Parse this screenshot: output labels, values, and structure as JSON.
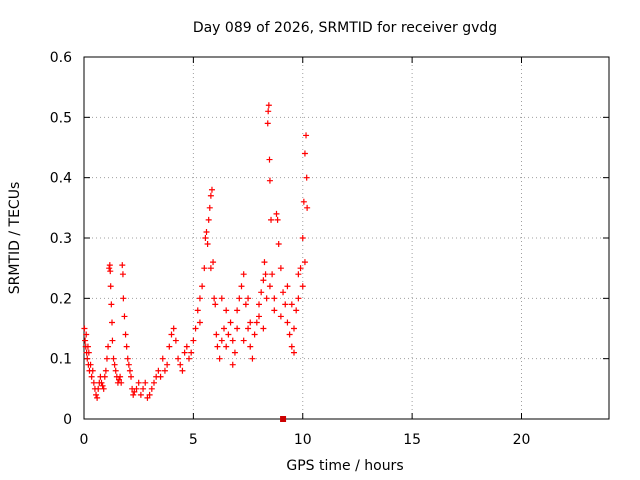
{
  "chart_data": {
    "type": "scatter",
    "title": "Day 089 of 2026, SRMTID for receiver gvdg",
    "xlabel": "GPS time / hours",
    "ylabel": "SRMTID / TECUs",
    "xlim": [
      0,
      24
    ],
    "ylim": [
      0,
      0.6
    ],
    "xticks": [
      0,
      5,
      10,
      15,
      20
    ],
    "xtick_labels": [
      "0",
      "5",
      "10",
      "15",
      "20"
    ],
    "yticks": [
      0,
      0.1,
      0.2,
      0.3,
      0.4,
      0.5,
      0.6
    ],
    "ytick_labels": [
      "0",
      "0.1",
      "0.2",
      "0.3",
      "0.4",
      "0.5",
      "0.6"
    ],
    "grid": true,
    "marker": "+",
    "marker_color": "#ff0000",
    "current_time_marker": {
      "x": 9.1,
      "y": 0,
      "color": "#cc0000"
    },
    "series": [
      {
        "name": "SRMTID",
        "color": "#ff0000",
        "points": [
          [
            0.02,
            0.15
          ],
          [
            0.05,
            0.13
          ],
          [
            0.08,
            0.12
          ],
          [
            0.1,
            0.14
          ],
          [
            0.12,
            0.11
          ],
          [
            0.15,
            0.1
          ],
          [
            0.18,
            0.12
          ],
          [
            0.2,
            0.09
          ],
          [
            0.22,
            0.11
          ],
          [
            0.25,
            0.08
          ],
          [
            0.3,
            0.09
          ],
          [
            0.35,
            0.07
          ],
          [
            0.4,
            0.08
          ],
          [
            0.45,
            0.06
          ],
          [
            0.5,
            0.05
          ],
          [
            0.55,
            0.04
          ],
          [
            0.6,
            0.035
          ],
          [
            0.65,
            0.05
          ],
          [
            0.7,
            0.06
          ],
          [
            0.75,
            0.07
          ],
          [
            0.8,
            0.06
          ],
          [
            0.85,
            0.055
          ],
          [
            0.9,
            0.05
          ],
          [
            0.95,
            0.07
          ],
          [
            1.0,
            0.08
          ],
          [
            1.05,
            0.1
          ],
          [
            1.1,
            0.12
          ],
          [
            1.15,
            0.25
          ],
          [
            1.18,
            0.255
          ],
          [
            1.2,
            0.245
          ],
          [
            1.22,
            0.22
          ],
          [
            1.25,
            0.19
          ],
          [
            1.28,
            0.16
          ],
          [
            1.3,
            0.13
          ],
          [
            1.35,
            0.1
          ],
          [
            1.4,
            0.09
          ],
          [
            1.45,
            0.08
          ],
          [
            1.5,
            0.07
          ],
          [
            1.55,
            0.06
          ],
          [
            1.6,
            0.065
          ],
          [
            1.65,
            0.07
          ],
          [
            1.7,
            0.06
          ],
          [
            1.75,
            0.255
          ],
          [
            1.78,
            0.24
          ],
          [
            1.8,
            0.2
          ],
          [
            1.85,
            0.17
          ],
          [
            1.9,
            0.14
          ],
          [
            1.95,
            0.12
          ],
          [
            2.0,
            0.1
          ],
          [
            2.05,
            0.09
          ],
          [
            2.1,
            0.08
          ],
          [
            2.15,
            0.07
          ],
          [
            2.2,
            0.05
          ],
          [
            2.25,
            0.04
          ],
          [
            2.3,
            0.045
          ],
          [
            2.4,
            0.05
          ],
          [
            2.5,
            0.06
          ],
          [
            2.6,
            0.04
          ],
          [
            2.7,
            0.05
          ],
          [
            2.8,
            0.06
          ],
          [
            2.9,
            0.035
          ],
          [
            3.0,
            0.04
          ],
          [
            3.1,
            0.05
          ],
          [
            3.2,
            0.06
          ],
          [
            3.3,
            0.07
          ],
          [
            3.4,
            0.08
          ],
          [
            3.5,
            0.07
          ],
          [
            3.6,
            0.1
          ],
          [
            3.7,
            0.08
          ],
          [
            3.8,
            0.09
          ],
          [
            3.9,
            0.12
          ],
          [
            4.0,
            0.14
          ],
          [
            4.1,
            0.15
          ],
          [
            4.2,
            0.13
          ],
          [
            4.3,
            0.1
          ],
          [
            4.4,
            0.09
          ],
          [
            4.5,
            0.08
          ],
          [
            4.6,
            0.11
          ],
          [
            4.7,
            0.12
          ],
          [
            4.8,
            0.1
          ],
          [
            4.9,
            0.11
          ],
          [
            5.0,
            0.13
          ],
          [
            5.1,
            0.15
          ],
          [
            5.2,
            0.18
          ],
          [
            5.3,
            0.2
          ],
          [
            5.4,
            0.22
          ],
          [
            5.5,
            0.25
          ],
          [
            5.55,
            0.3
          ],
          [
            5.6,
            0.31
          ],
          [
            5.65,
            0.29
          ],
          [
            5.7,
            0.33
          ],
          [
            5.75,
            0.35
          ],
          [
            5.8,
            0.37
          ],
          [
            5.85,
            0.38
          ],
          [
            5.9,
            0.26
          ],
          [
            5.95,
            0.2
          ],
          [
            6.0,
            0.19
          ],
          [
            6.05,
            0.14
          ],
          [
            6.1,
            0.12
          ],
          [
            6.2,
            0.1
          ],
          [
            6.3,
            0.13
          ],
          [
            6.4,
            0.15
          ],
          [
            6.5,
            0.12
          ],
          [
            6.6,
            0.14
          ],
          [
            6.7,
            0.16
          ],
          [
            6.8,
            0.13
          ],
          [
            6.9,
            0.11
          ],
          [
            7.0,
            0.18
          ],
          [
            7.1,
            0.2
          ],
          [
            7.2,
            0.22
          ],
          [
            7.3,
            0.24
          ],
          [
            7.4,
            0.19
          ],
          [
            7.5,
            0.15
          ],
          [
            7.6,
            0.12
          ],
          [
            7.7,
            0.1
          ],
          [
            7.8,
            0.14
          ],
          [
            7.9,
            0.16
          ],
          [
            8.0,
            0.19
          ],
          [
            8.1,
            0.21
          ],
          [
            8.2,
            0.23
          ],
          [
            8.25,
            0.26
          ],
          [
            8.3,
            0.24
          ],
          [
            8.35,
            0.2
          ],
          [
            8.4,
            0.49
          ],
          [
            8.42,
            0.51
          ],
          [
            8.45,
            0.52
          ],
          [
            8.48,
            0.43
          ],
          [
            8.5,
            0.395
          ],
          [
            8.55,
            0.33
          ],
          [
            8.6,
            0.24
          ],
          [
            8.7,
            0.2
          ],
          [
            8.8,
            0.34
          ],
          [
            8.85,
            0.33
          ],
          [
            8.9,
            0.29
          ],
          [
            9.0,
            0.25
          ],
          [
            9.1,
            0.21
          ],
          [
            9.2,
            0.19
          ],
          [
            9.3,
            0.16
          ],
          [
            9.4,
            0.14
          ],
          [
            9.5,
            0.12
          ],
          [
            9.6,
            0.15
          ],
          [
            9.7,
            0.18
          ],
          [
            9.8,
            0.2
          ],
          [
            9.9,
            0.25
          ],
          [
            10.0,
            0.3
          ],
          [
            10.05,
            0.36
          ],
          [
            10.1,
            0.44
          ],
          [
            10.15,
            0.47
          ],
          [
            10.18,
            0.4
          ],
          [
            10.2,
            0.35
          ],
          [
            6.5,
            0.18
          ],
          [
            7.0,
            0.15
          ],
          [
            7.5,
            0.2
          ],
          [
            8.0,
            0.17
          ],
          [
            8.5,
            0.22
          ],
          [
            9.0,
            0.17
          ],
          [
            9.5,
            0.19
          ],
          [
            10.0,
            0.22
          ],
          [
            6.8,
            0.09
          ],
          [
            7.6,
            0.16
          ],
          [
            8.7,
            0.18
          ],
          [
            9.3,
            0.22
          ],
          [
            9.8,
            0.24
          ],
          [
            10.1,
            0.26
          ],
          [
            5.3,
            0.16
          ],
          [
            5.8,
            0.25
          ],
          [
            6.3,
            0.2
          ],
          [
            7.3,
            0.13
          ],
          [
            8.2,
            0.15
          ],
          [
            9.6,
            0.11
          ]
        ]
      }
    ]
  }
}
